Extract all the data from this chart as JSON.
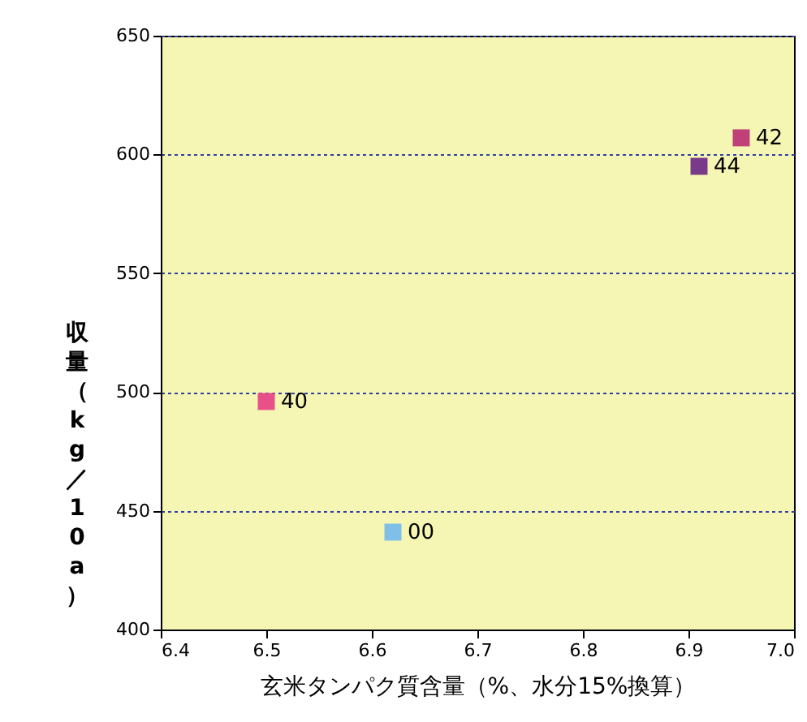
{
  "chart_data": {
    "type": "scatter",
    "xlabel": "玄米タンパク質含量（%、水分15%換算）",
    "ylabel": "収量（kg／10a）",
    "xlim": [
      6.4,
      7.0
    ],
    "xticks": [
      6.4,
      6.5,
      6.6,
      6.7,
      6.8,
      6.9,
      {
        "value": 7.0,
        "label": "7.0"
      }
    ],
    "ylim": [
      400,
      650
    ],
    "yticks": [
      400,
      450,
      500,
      550,
      600,
      650
    ],
    "grid": "y",
    "marker": "square",
    "legend": false,
    "series": [
      {
        "name": "40",
        "color": "#e8508a",
        "x": [
          6.5
        ],
        "values": [
          496
        ]
      },
      {
        "name": "00",
        "color": "#80c0e8",
        "x": [
          6.62
        ],
        "values": [
          441
        ]
      },
      {
        "name": "44",
        "color": "#7a3a8a",
        "x": [
          6.91
        ],
        "values": [
          595
        ]
      },
      {
        "name": "42",
        "color": "#c0407a",
        "x": [
          6.95
        ],
        "values": [
          607
        ]
      }
    ]
  }
}
